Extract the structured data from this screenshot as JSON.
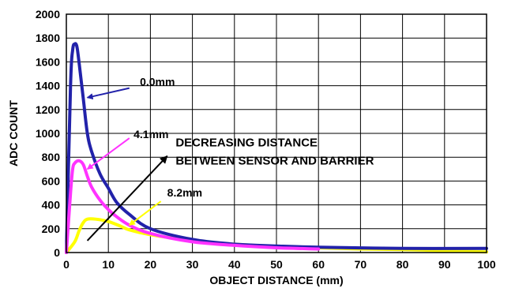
{
  "chart_data": {
    "type": "line",
    "title": "",
    "xlabel": "OBJECT DISTANCE (mm)",
    "ylabel": "ADC COUNT",
    "xlim": [
      0,
      100
    ],
    "ylim": [
      0,
      2000
    ],
    "x_ticks": [
      0,
      10,
      20,
      30,
      40,
      50,
      60,
      70,
      80,
      90,
      100
    ],
    "y_ticks": [
      0,
      200,
      400,
      600,
      800,
      1000,
      1200,
      1400,
      1600,
      1800,
      2000
    ],
    "grid": true,
    "series": [
      {
        "name": "0.0mm",
        "color": "#2222aa",
        "x": [
          0,
          1,
          1.5,
          2,
          2.5,
          3,
          4,
          5,
          6,
          8,
          10,
          12,
          15,
          20,
          30,
          40,
          50,
          60,
          80,
          100
        ],
        "y": [
          0,
          1400,
          1700,
          1750,
          1730,
          1600,
          1300,
          1000,
          850,
          660,
          540,
          420,
          320,
          200,
          110,
          70,
          55,
          45,
          35,
          35
        ]
      },
      {
        "name": "4.1mm",
        "color": "#ff33ff",
        "x": [
          0,
          1,
          1.5,
          2,
          3,
          4,
          5,
          6,
          8,
          10,
          12,
          15,
          20,
          30,
          40,
          50,
          60
        ],
        "y": [
          0,
          500,
          700,
          750,
          770,
          740,
          640,
          550,
          440,
          360,
          300,
          230,
          160,
          90,
          60,
          40,
          30
        ]
      },
      {
        "name": "8.2mm",
        "color": "#ffff00",
        "x": [
          0,
          2,
          3,
          4,
          5,
          7,
          10,
          13,
          15,
          20,
          30,
          40,
          50,
          60,
          70,
          80,
          90,
          100
        ],
        "y": [
          0,
          90,
          180,
          250,
          280,
          280,
          260,
          220,
          190,
          150,
          100,
          70,
          50,
          40,
          30,
          25,
          15,
          5
        ]
      }
    ],
    "annotations": [
      {
        "text": "0.0mm",
        "series": "0.0mm",
        "text_x": 17.5,
        "text_y": 1400,
        "arrow_from": [
          15,
          1380
        ],
        "arrow_to": [
          5,
          1300
        ]
      },
      {
        "text": "4.1mm",
        "series": "4.1mm",
        "text_x": 16,
        "text_y": 960,
        "arrow_from": [
          15,
          960
        ],
        "arrow_to": [
          5,
          700
        ]
      },
      {
        "text": "8.2mm",
        "series": "8.2mm",
        "text_x": 24,
        "text_y": 470,
        "arrow_from": [
          22.5,
          430
        ],
        "arrow_to": [
          15,
          230
        ]
      }
    ],
    "trend_label": {
      "lines": [
        "DECREASING DISTANCE",
        "BETWEEN SENSOR AND BARRIER"
      ],
      "text_x": 26,
      "text_y": [
        890,
        740
      ],
      "arrow_from": [
        5,
        100
      ],
      "arrow_to": [
        24,
        810
      ]
    }
  }
}
